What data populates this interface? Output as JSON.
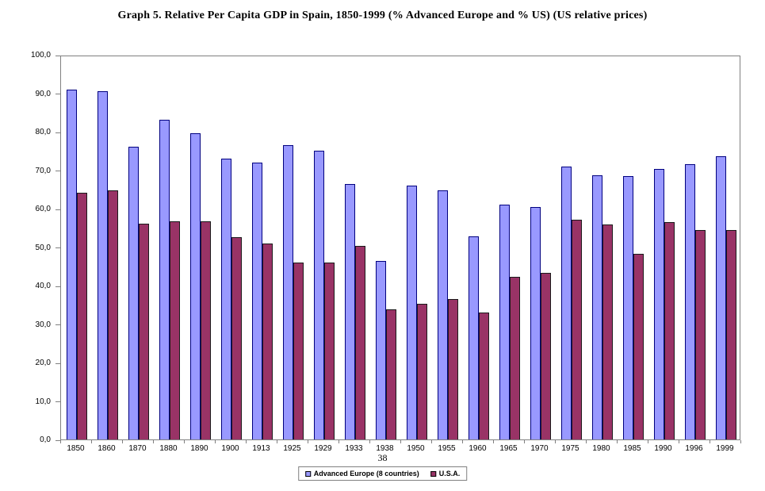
{
  "page_number": "38",
  "chart_data": {
    "type": "bar",
    "title": "Graph 5. Relative Per Capita GDP in Spain, 1850-1999  (% Advanced Europe and % US)  (US relative prices)",
    "xlabel": "",
    "ylabel": "",
    "ylim": [
      0,
      100
    ],
    "ytick_step": 10,
    "y_tick_labels": [
      "0,0",
      "10,0",
      "20,0",
      "30,0",
      "40,0",
      "50,0",
      "60,0",
      "70,0",
      "80,0",
      "90,0",
      "100,0"
    ],
    "grid": false,
    "legend_position": "bottom",
    "categories": [
      "1850",
      "1860",
      "1870",
      "1880",
      "1890",
      "1900",
      "1913",
      "1925",
      "1929",
      "1933",
      "1938",
      "1950",
      "1955",
      "1960",
      "1965",
      "1970",
      "1975",
      "1980",
      "1985",
      "1990",
      "1996",
      "1999"
    ],
    "series": [
      {
        "name": "Advanced Europe (8 countries)",
        "color": "#9999ff",
        "border_color": "#00007f",
        "values": [
          91.0,
          90.5,
          76.0,
          83.0,
          79.5,
          73.0,
          72.0,
          76.5,
          75.0,
          66.3,
          46.4,
          66.0,
          64.8,
          52.8,
          61.0,
          60.4,
          71.0,
          68.7,
          68.5,
          70.3,
          71.5,
          73.6
        ]
      },
      {
        "name": "U.S.A.",
        "color": "#993366",
        "border_color": "#1a1a1a",
        "values": [
          64.1,
          64.7,
          56.0,
          56.8,
          56.7,
          52.5,
          51.0,
          46.0,
          46.0,
          50.3,
          33.8,
          35.2,
          36.4,
          33.0,
          42.2,
          43.2,
          57.2,
          55.8,
          48.2,
          56.4,
          54.5,
          54.5
        ]
      }
    ]
  }
}
